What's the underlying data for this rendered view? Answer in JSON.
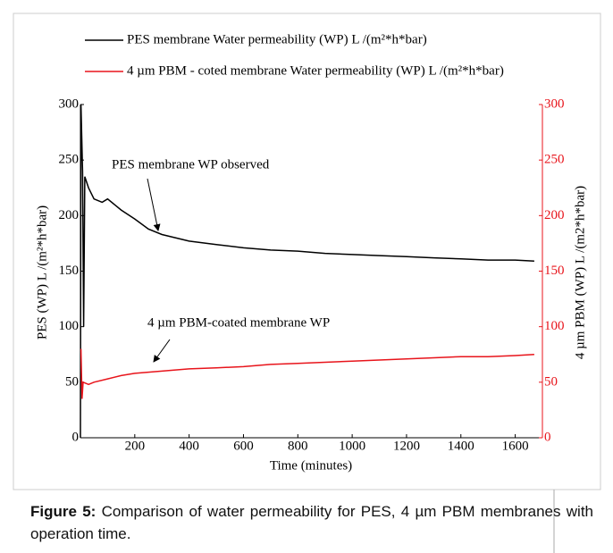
{
  "chart_data": {
    "type": "line",
    "legend": {
      "position": "top"
    },
    "series": [
      {
        "name": "PES membrane Water permeability (WP)  L /(m²*h*bar)",
        "color": "#000000",
        "x": [
          0,
          2,
          8,
          12,
          16,
          30,
          50,
          80,
          100,
          150,
          200,
          250,
          300,
          400,
          500,
          600,
          700,
          800,
          900,
          1000,
          1100,
          1200,
          1300,
          1400,
          1500,
          1600,
          1670
        ],
        "values": [
          0,
          300,
          240,
          100,
          235,
          225,
          215,
          212,
          215,
          205,
          197,
          188,
          183,
          177,
          174,
          171,
          169,
          168,
          166,
          165,
          164,
          163,
          162,
          161,
          160,
          160,
          159
        ]
      },
      {
        "name": "4 µm PBM - coted membrane Water permeability (WP)  L /(m²*h*bar)",
        "color": "#e8141b",
        "axis": "y2",
        "x": [
          2,
          6,
          10,
          30,
          50,
          100,
          150,
          200,
          300,
          400,
          500,
          600,
          700,
          800,
          900,
          1000,
          1100,
          1200,
          1300,
          1400,
          1500,
          1600,
          1670
        ],
        "values": [
          80,
          35,
          50,
          48,
          50,
          53,
          56,
          58,
          60,
          62,
          63,
          64,
          66,
          67,
          68,
          69,
          70,
          71,
          72,
          73,
          73,
          74,
          75
        ]
      }
    ],
    "xlabel": "Time (minutes)",
    "ylabel": "PES  (WP) L /(m²*h*bar)",
    "y2label": "4 µm PBM  (WP) L /(m2*h*bar)",
    "xlim": [
      0,
      1700
    ],
    "xticks": [
      200,
      400,
      600,
      800,
      1000,
      1200,
      1400,
      1600
    ],
    "ylim": [
      0,
      300
    ],
    "yticks": [
      0,
      50,
      100,
      150,
      200,
      250,
      300
    ],
    "y2lim": [
      0,
      300
    ],
    "y2ticks": [
      0,
      50,
      100,
      150,
      200,
      250,
      300
    ],
    "annotations": [
      {
        "text": "PES membrane WP observed"
      },
      {
        "text": "4 µm PBM-coated membrane WP"
      }
    ]
  },
  "caption": {
    "label": "Figure 5:",
    "text": "Comparison of water permeability for PES, 4 µm PBM membranes with operation time."
  }
}
